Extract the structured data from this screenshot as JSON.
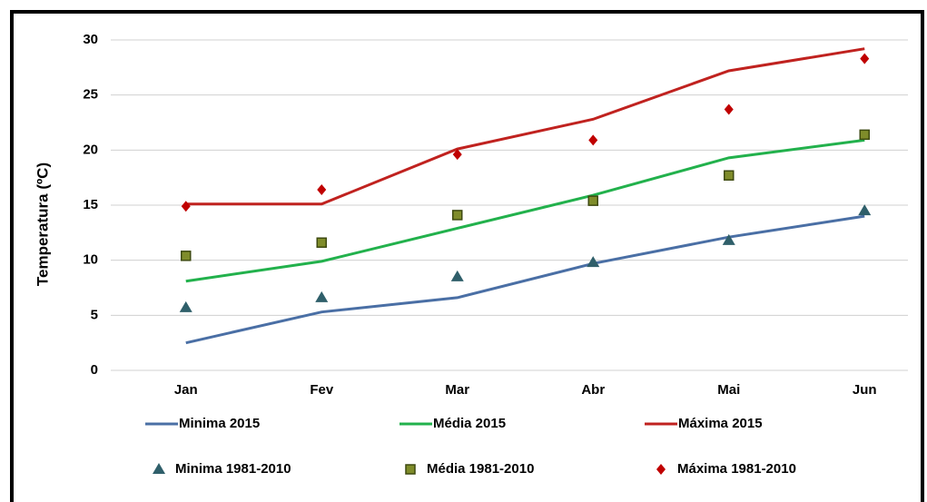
{
  "chart_data": {
    "type": "line",
    "y_label": "Temperatura  (ºC)",
    "categories": [
      "Jan",
      "Fev",
      "Mar",
      "Abr",
      "Mai",
      "Jun"
    ],
    "ylim": [
      0,
      30
    ],
    "yticks": [
      0,
      5,
      10,
      15,
      20,
      25,
      30
    ],
    "grid": true,
    "series": [
      {
        "name": "Minima 2015",
        "type": "line",
        "color": "#4a6fa5",
        "values": [
          2.5,
          5.3,
          6.6,
          9.7,
          12.1,
          14.0
        ]
      },
      {
        "name": "Média  2015",
        "type": "line",
        "color": "#22b14c",
        "values": [
          8.1,
          9.9,
          12.9,
          15.9,
          19.3,
          20.9
        ]
      },
      {
        "name": "Máxima 2015",
        "type": "line",
        "color": "#c0221f",
        "values": [
          15.1,
          15.1,
          20.1,
          22.8,
          27.2,
          29.2
        ]
      },
      {
        "name": "Minima 1981-2010",
        "type": "scatter",
        "marker": "triangle",
        "color": "#2f5f6a",
        "values": [
          5.7,
          6.6,
          8.5,
          9.8,
          11.8,
          14.5
        ]
      },
      {
        "name": "Média 1981-2010",
        "type": "scatter",
        "marker": "square",
        "color": "#7f8c2a",
        "values": [
          10.4,
          11.6,
          14.1,
          15.4,
          17.7,
          21.4
        ]
      },
      {
        "name": "Máxima 1981-2010",
        "type": "scatter",
        "marker": "diamond",
        "color": "#c00000",
        "values": [
          14.9,
          16.4,
          19.6,
          20.9,
          23.7,
          28.3
        ]
      }
    ]
  }
}
